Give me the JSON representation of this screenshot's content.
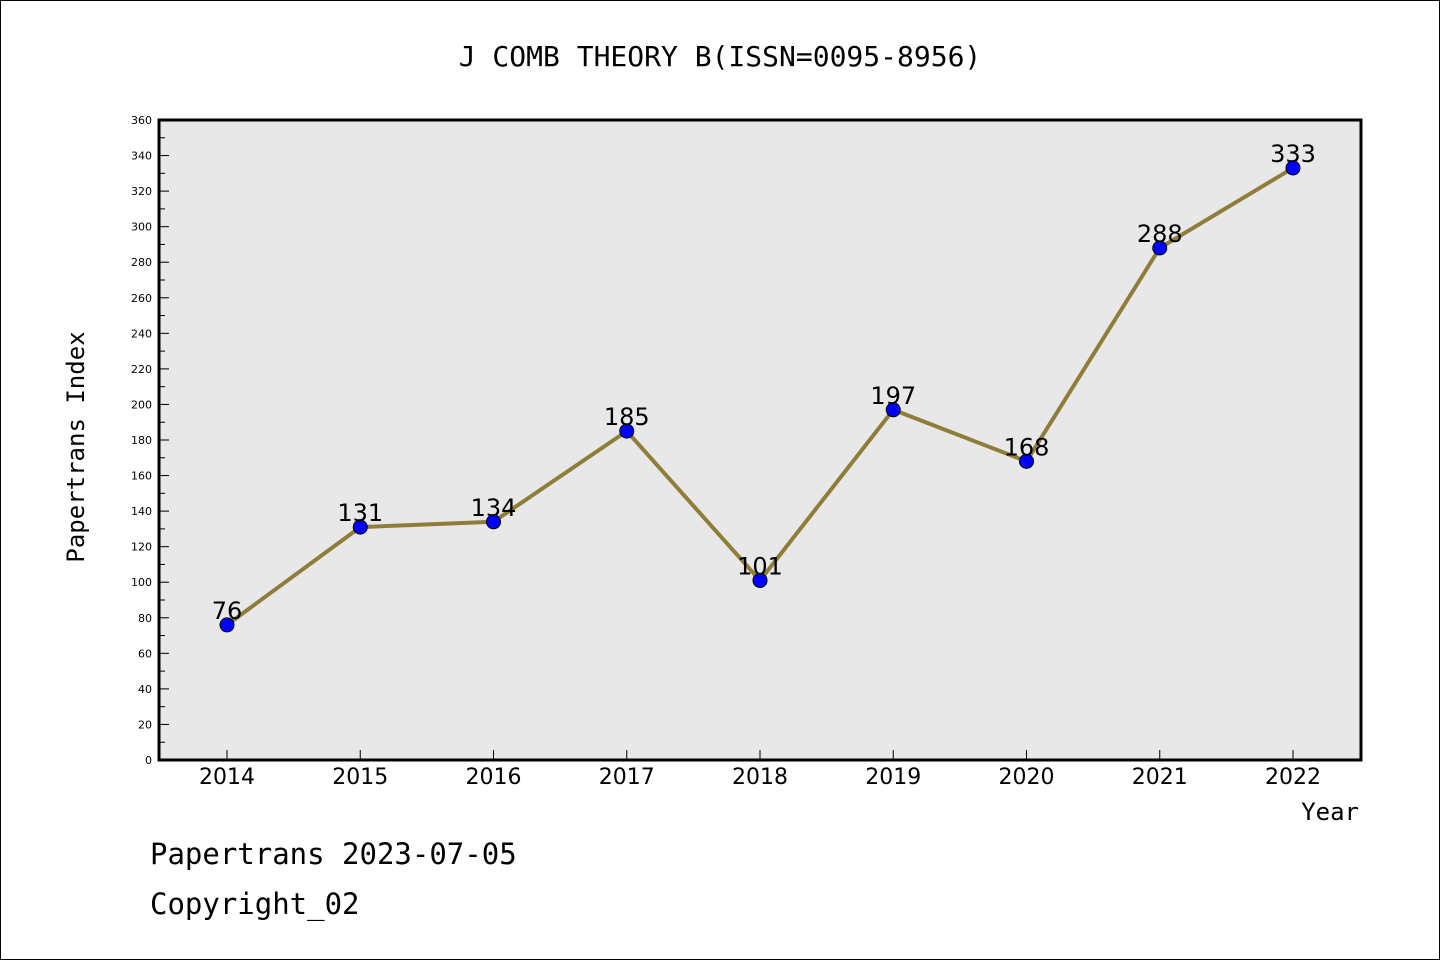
{
  "chart_data": {
    "type": "line",
    "title": "J COMB THEORY B(ISSN=0095-8956)",
    "xlabel": "Year",
    "ylabel": "Papertrans Index",
    "x": [
      "2014",
      "2015",
      "2016",
      "2017",
      "2018",
      "2019",
      "2020",
      "2021",
      "2022"
    ],
    "series": [
      {
        "values": [
          76,
          131,
          134,
          185,
          101,
          197,
          168,
          288,
          333
        ]
      }
    ],
    "ylim": [
      0,
      360
    ],
    "ytick_step": 20,
    "grid": false,
    "legend": "none",
    "line_color": "#8f7d3a",
    "marker_color": "#0000ff",
    "plot_background": "#e8e8e8"
  },
  "footer": {
    "line1": "Papertrans 2023-07-05",
    "line2": "Copyright_02"
  }
}
